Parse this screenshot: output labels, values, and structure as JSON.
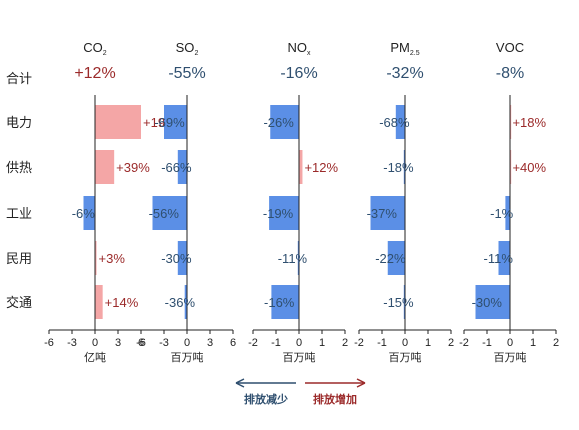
{
  "colors": {
    "decrease": "#5b8fe6",
    "increase": "#f4a6a6",
    "dec_text": "#2f4f6f",
    "inc_text": "#9b2a2a",
    "axis": "#222222"
  },
  "rows": [
    "电力",
    "供热",
    "工业",
    "民用",
    "交通"
  ],
  "total_label": "合计",
  "legend": {
    "decrease": "排放减少",
    "increase": "排放增加"
  },
  "chart_data": [
    {
      "type": "bar",
      "title": "CO",
      "title_sub": "2",
      "total": "+12%",
      "unit": "亿吨",
      "xlim": [
        -6,
        6
      ],
      "ticks": [
        "-6",
        "-3",
        "0",
        "3",
        "6"
      ],
      "values": [
        6,
        2.5,
        -1.5,
        0.2,
        1
      ],
      "labels": [
        "+19%",
        "+39%",
        "-6%",
        "+3%",
        "+14%"
      ]
    },
    {
      "type": "bar",
      "title": "SO",
      "title_sub": "2",
      "total": "-55%",
      "unit": "百万吨",
      "xlim": [
        -6,
        6
      ],
      "ticks": [
        "-6",
        "-3",
        "0",
        "3",
        "6"
      ],
      "values": [
        -3,
        -1.2,
        -4.5,
        -1.2,
        -0.3
      ],
      "labels": [
        "-69%",
        "-66%",
        "-56%",
        "-30%",
        "-36%"
      ]
    },
    {
      "type": "bar",
      "title": "NO",
      "title_sub": "x",
      "total": "-16%",
      "unit": "百万吨",
      "xlim": [
        -2,
        2
      ],
      "ticks": [
        "-2",
        "-1",
        "0",
        "1",
        "2"
      ],
      "values": [
        -1.25,
        0.15,
        -1.3,
        -0.05,
        -1.2
      ],
      "labels": [
        "-26%",
        "+12%",
        "-19%",
        "-11%",
        "-16%"
      ]
    },
    {
      "type": "bar",
      "title": "PM",
      "title_sub": "2.5",
      "total": "-32%",
      "unit": "百万吨",
      "xlim": [
        -2,
        2
      ],
      "ticks": [
        "-2",
        "-1",
        "0",
        "1",
        "2"
      ],
      "values": [
        -0.4,
        -0.05,
        -1.5,
        -0.75,
        -0.05
      ],
      "labels": [
        "-68%",
        "-18%",
        "-37%",
        "-22%",
        "-15%"
      ]
    },
    {
      "type": "bar",
      "title": "VOC",
      "title_sub": "",
      "total": "-8%",
      "unit": "百万吨",
      "xlim": [
        -2,
        2
      ],
      "ticks": [
        "-2",
        "-1",
        "0",
        "1",
        "2"
      ],
      "values": [
        0.02,
        0.02,
        -0.2,
        -0.5,
        -1.5
      ],
      "labels": [
        "+18%",
        "+40%",
        "-1%",
        "-11%",
        "-30%"
      ]
    }
  ]
}
